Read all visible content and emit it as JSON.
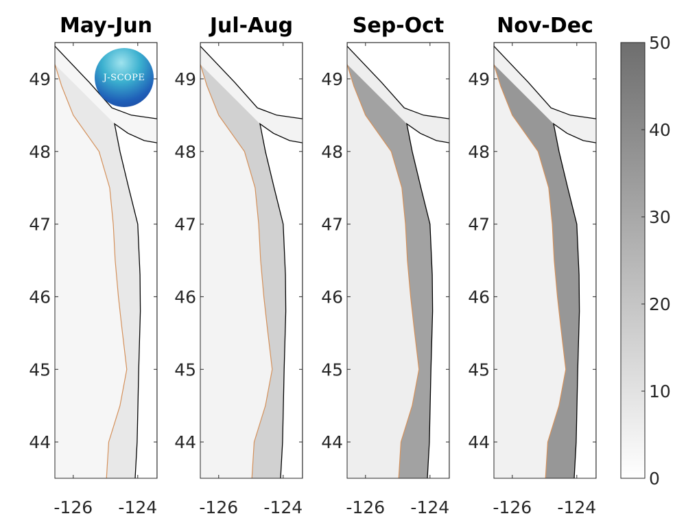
{
  "chart_data": {
    "type": "heatmap",
    "panels": [
      {
        "title": "May-Jun",
        "shelf_value": 8,
        "offshore_value": 3
      },
      {
        "title": "Jul-Aug",
        "shelf_value": 16,
        "offshore_value": 4
      },
      {
        "title": "Sep-Oct",
        "shelf_value": 32,
        "offshore_value": 6
      },
      {
        "title": "Nov-Dec",
        "shelf_value": 36,
        "offshore_value": 5
      }
    ],
    "lon_range": [
      -126.57,
      -123.4
    ],
    "lat_range": [
      43.5,
      49.5
    ],
    "x_ticks": [
      -126,
      -124
    ],
    "x_tick_labels": [
      "-126",
      "-124"
    ],
    "y_ticks": [
      44,
      45,
      46,
      47,
      48,
      49
    ],
    "y_tick_labels": [
      "44",
      "45",
      "46",
      "47",
      "48",
      "49"
    ],
    "colorbar": {
      "range": [
        0,
        50
      ],
      "ticks": [
        0,
        10,
        20,
        30,
        40,
        50
      ],
      "tick_labels": [
        "0",
        "10",
        "20",
        "30",
        "40",
        "50"
      ],
      "low_color": "#ffffff",
      "high_color": "#6e6e6e"
    },
    "coastline": [
      [
        -124.08,
        43.5
      ],
      [
        -124.02,
        44
      ],
      [
        -123.97,
        45
      ],
      [
        -123.92,
        45.8
      ],
      [
        -123.93,
        46.3
      ],
      [
        -124.0,
        47
      ],
      [
        -124.28,
        47.5
      ],
      [
        -124.55,
        48
      ],
      [
        -124.72,
        48.38
      ],
      [
        -124.3,
        48.25
      ],
      [
        -123.8,
        48.15
      ],
      [
        -123.4,
        48.12
      ]
    ],
    "island": [
      [
        -123.4,
        48.45
      ],
      [
        -124.2,
        48.5
      ],
      [
        -124.8,
        48.6
      ],
      [
        -125.5,
        48.95
      ],
      [
        -126.57,
        49.45
      ],
      [
        -126.57,
        49.5
      ],
      [
        -123.4,
        49.5
      ]
    ],
    "isobath_200m": [
      [
        -124.97,
        43.5
      ],
      [
        -124.9,
        44
      ],
      [
        -124.55,
        44.5
      ],
      [
        -124.34,
        45
      ],
      [
        -124.5,
        45.6
      ],
      [
        -124.6,
        46
      ],
      [
        -124.7,
        46.5
      ],
      [
        -124.76,
        47
      ],
      [
        -124.87,
        47.5
      ],
      [
        -125.2,
        48
      ],
      [
        -126.0,
        48.5
      ],
      [
        -126.36,
        48.9
      ],
      [
        -126.57,
        49.2
      ]
    ],
    "contour_color": "#d4905a"
  },
  "logo_text": "J-SCOPE"
}
